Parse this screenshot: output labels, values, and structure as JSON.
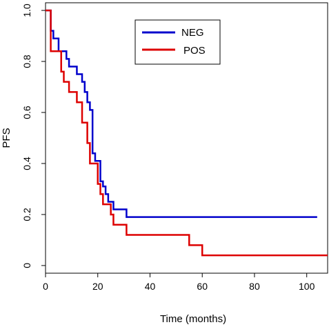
{
  "chart_data": {
    "type": "line",
    "step": true,
    "xlabel": "Time (months)",
    "ylabel": "PFS",
    "xlim": [
      0,
      108
    ],
    "ylim": [
      -0.03,
      1.03
    ],
    "xticks": [
      0,
      20,
      40,
      60,
      80,
      100
    ],
    "yticks": [
      0,
      0.2,
      0.4,
      0.6,
      0.8,
      1.0
    ],
    "xtick_labels": [
      "0",
      "20",
      "40",
      "60",
      "80",
      "100"
    ],
    "ytick_labels": [
      "0",
      "0.2",
      "0.4",
      "0.6",
      "0.8",
      "1.0"
    ],
    "grid": false,
    "legend_position": "top-center",
    "series": [
      {
        "name": "NEG",
        "color": "#0000cc",
        "x": [
          0,
          2,
          3,
          4,
          5,
          8,
          9,
          10,
          12,
          14,
          15,
          16,
          17,
          18,
          19,
          20,
          21,
          22,
          23,
          24,
          26,
          31,
          104
        ],
        "y": [
          1.0,
          0.92,
          0.89,
          0.89,
          0.84,
          0.81,
          0.78,
          0.78,
          0.75,
          0.72,
          0.68,
          0.64,
          0.61,
          0.44,
          0.41,
          0.41,
          0.33,
          0.31,
          0.28,
          0.25,
          0.22,
          0.19,
          0.19
        ]
      },
      {
        "name": "POS",
        "color": "#dd0000",
        "x": [
          0,
          2,
          5,
          6,
          7,
          9,
          12,
          14,
          16,
          17,
          19,
          20,
          21,
          22,
          25,
          26,
          31,
          55,
          57,
          60,
          108
        ],
        "y": [
          1.0,
          0.84,
          0.84,
          0.76,
          0.72,
          0.68,
          0.64,
          0.56,
          0.48,
          0.4,
          0.4,
          0.32,
          0.28,
          0.24,
          0.2,
          0.16,
          0.12,
          0.08,
          0.08,
          0.04,
          0.04
        ]
      }
    ]
  }
}
